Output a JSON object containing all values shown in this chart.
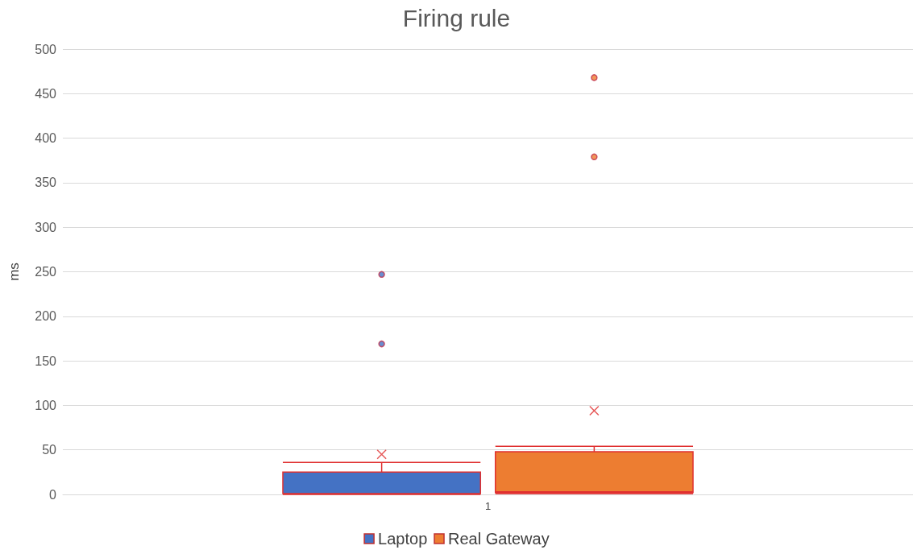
{
  "chart_data": {
    "type": "box",
    "title": "Firing rule",
    "ylabel": "ms",
    "categories": [
      "1"
    ],
    "series": [
      {
        "name": "Laptop",
        "color": "#4472c4",
        "boxes": [
          {
            "low": 0,
            "q1": 1,
            "median": 1,
            "q3": 25,
            "high": 36,
            "mean": 45,
            "outliers": [
              169,
              247
            ]
          }
        ]
      },
      {
        "name": "Real Gateway",
        "color": "#ed7d31",
        "boxes": [
          {
            "low": 1,
            "q1": 2,
            "median": 3,
            "q3": 48,
            "high": 54,
            "mean": 94,
            "outliers": [
              379,
              468
            ]
          }
        ]
      }
    ],
    "ylim": [
      0,
      500
    ],
    "yticks": [
      0,
      50,
      100,
      150,
      200,
      250,
      300,
      350,
      400,
      450,
      500
    ],
    "grid": "y",
    "legend": "bottom"
  }
}
